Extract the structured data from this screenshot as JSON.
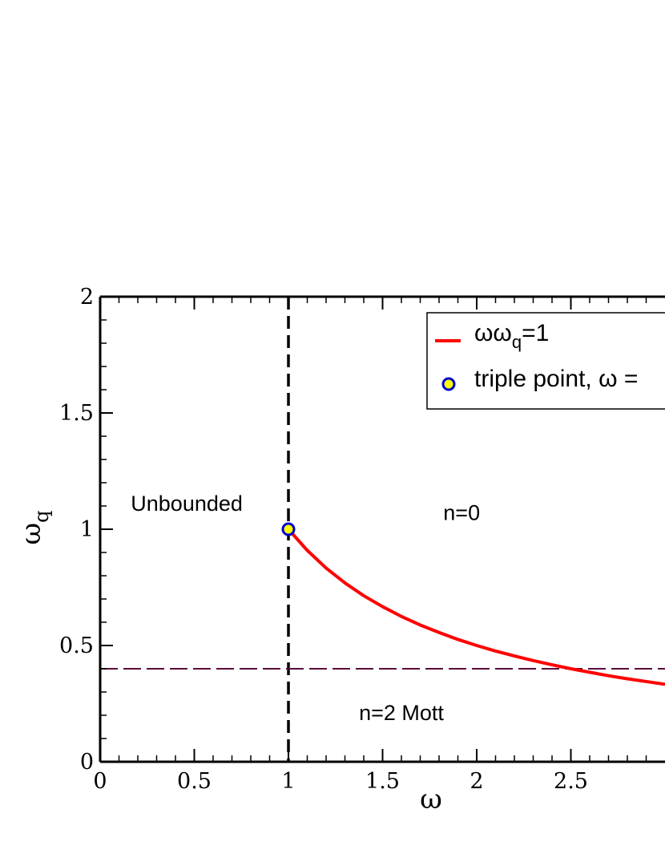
{
  "chart_data": {
    "type": "line",
    "xlabel": "ω",
    "ylabel_main": "ω",
    "ylabel_sub": "q",
    "xlim": [
      0,
      3
    ],
    "ylim": [
      0,
      2
    ],
    "x_ticks": [
      {
        "value": 0,
        "label": "0"
      },
      {
        "value": 0.5,
        "label": "0.5"
      },
      {
        "value": 1,
        "label": "1"
      },
      {
        "value": 1.5,
        "label": "1.5"
      },
      {
        "value": 2,
        "label": "2"
      },
      {
        "value": 2.5,
        "label": "2.5"
      }
    ],
    "y_ticks": [
      {
        "value": 0,
        "label": "0"
      },
      {
        "value": 0.5,
        "label": "0.5"
      },
      {
        "value": 1,
        "label": "1"
      },
      {
        "value": 1.5,
        "label": "1.5"
      },
      {
        "value": 2,
        "label": "2"
      }
    ],
    "series": [
      {
        "legend_main": "ωω",
        "legend_sub": "q",
        "legend_tail": "=1",
        "color": "#ff0000",
        "style": "solid",
        "x": [
          1.0,
          1.1,
          1.2,
          1.3,
          1.4,
          1.5,
          1.6,
          1.7,
          1.8,
          1.9,
          2.0,
          2.1,
          2.2,
          2.3,
          2.4,
          2.5,
          2.6,
          2.7,
          2.8,
          2.9,
          3.0
        ],
        "y": [
          1.0,
          0.909,
          0.833,
          0.769,
          0.714,
          0.667,
          0.625,
          0.588,
          0.556,
          0.526,
          0.5,
          0.476,
          0.455,
          0.435,
          0.417,
          0.4,
          0.385,
          0.37,
          0.357,
          0.345,
          0.333
        ]
      },
      {
        "legend_main": "triple point, ω =",
        "color_fill": "#ffff00",
        "color_edge": "#0000cc",
        "style": "marker",
        "x": [
          1.0
        ],
        "y": [
          1.0
        ]
      }
    ],
    "reference_lines": [
      {
        "orientation": "vertical",
        "value": 1.0,
        "color": "#000000",
        "style": "dashed"
      },
      {
        "orientation": "horizontal",
        "value": 0.4,
        "color": "#5a0a3a",
        "style": "dashed"
      }
    ],
    "annotations": [
      {
        "text": "Unbounded",
        "x": 0.46,
        "y": 1.08
      },
      {
        "text": "n=0",
        "x": 1.92,
        "y": 1.04
      },
      {
        "text": "n=2 Mott",
        "x": 1.6,
        "y": 0.18
      }
    ],
    "legend_position": "top-right",
    "grid": false
  }
}
